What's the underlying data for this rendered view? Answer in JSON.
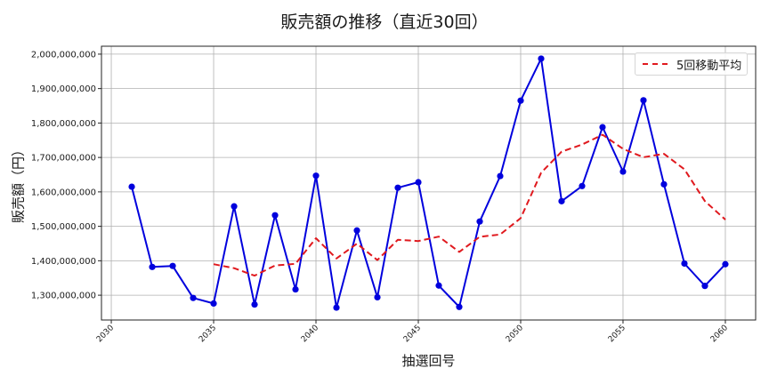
{
  "chart_data": {
    "type": "line",
    "title": "販売額の推移（直近30回）",
    "xlabel": "抽選回号",
    "ylabel": "販売額（円）",
    "x": [
      2031,
      2032,
      2033,
      2034,
      2035,
      2036,
      2037,
      2038,
      2039,
      2040,
      2041,
      2042,
      2043,
      2044,
      2045,
      2046,
      2047,
      2048,
      2049,
      2050,
      2051,
      2052,
      2053,
      2054,
      2055,
      2056,
      2057,
      2058,
      2059,
      2060
    ],
    "series": [
      {
        "name": "販売額",
        "color": "#0000dd",
        "style": "solid",
        "marker": "circle",
        "x": [
          2031,
          2032,
          2033,
          2034,
          2035,
          2036,
          2037,
          2038,
          2039,
          2040,
          2041,
          2042,
          2043,
          2044,
          2045,
          2046,
          2047,
          2048,
          2049,
          2050,
          2051,
          2052,
          2053,
          2054,
          2055,
          2056,
          2057,
          2058,
          2059,
          2060
        ],
        "values": [
          1615000000,
          1382000000,
          1385000000,
          1292000000,
          1276000000,
          1558000000,
          1273000000,
          1532000000,
          1317000000,
          1647000000,
          1264000000,
          1488000000,
          1294000000,
          1612000000,
          1628000000,
          1328000000,
          1266000000,
          1514000000,
          1646000000,
          1865000000,
          1987000000,
          1573000000,
          1617000000,
          1788000000,
          1659000000,
          1866000000,
          1622000000,
          1392000000,
          1327000000,
          1390000000
        ]
      },
      {
        "name": "5回移動平均",
        "color": "#e0191e",
        "style": "dashed",
        "marker": "none",
        "x": [
          2035,
          2036,
          2037,
          2038,
          2039,
          2040,
          2041,
          2042,
          2043,
          2044,
          2045,
          2046,
          2047,
          2048,
          2049,
          2050,
          2051,
          2052,
          2053,
          2054,
          2055,
          2056,
          2057,
          2058,
          2059,
          2060
        ],
        "values": [
          1390000000,
          1378600000,
          1356800000,
          1386200000,
          1391200000,
          1465400000,
          1406600000,
          1449600000,
          1402000000,
          1461000000,
          1457200000,
          1470000000,
          1425600000,
          1469600000,
          1476400000,
          1523800000,
          1655600000,
          1717000000,
          1737600000,
          1766000000,
          1724800000,
          1700600000,
          1710400000,
          1665400000,
          1573200000,
          1519400000
        ]
      }
    ],
    "xticks": [
      2030,
      2035,
      2040,
      2045,
      2050,
      2055,
      2060
    ],
    "yticks": [
      1300000000,
      1400000000,
      1500000000,
      1600000000,
      1700000000,
      1800000000,
      1900000000,
      2000000000
    ],
    "ytick_labels": [
      "1,300,000,000",
      "1,400,000,000",
      "1,500,000,000",
      "1,600,000,000",
      "1,700,000,000",
      "1,800,000,000",
      "1,900,000,000",
      "2,000,000,000"
    ],
    "xlim": [
      2029.52,
      2061.48
    ],
    "ylim": [
      1228000000,
      2023000000
    ],
    "grid": true,
    "legend": {
      "position": "upper right",
      "entries": [
        "5回移動平均"
      ]
    }
  },
  "legend": {
    "label": "5回移動平均"
  }
}
